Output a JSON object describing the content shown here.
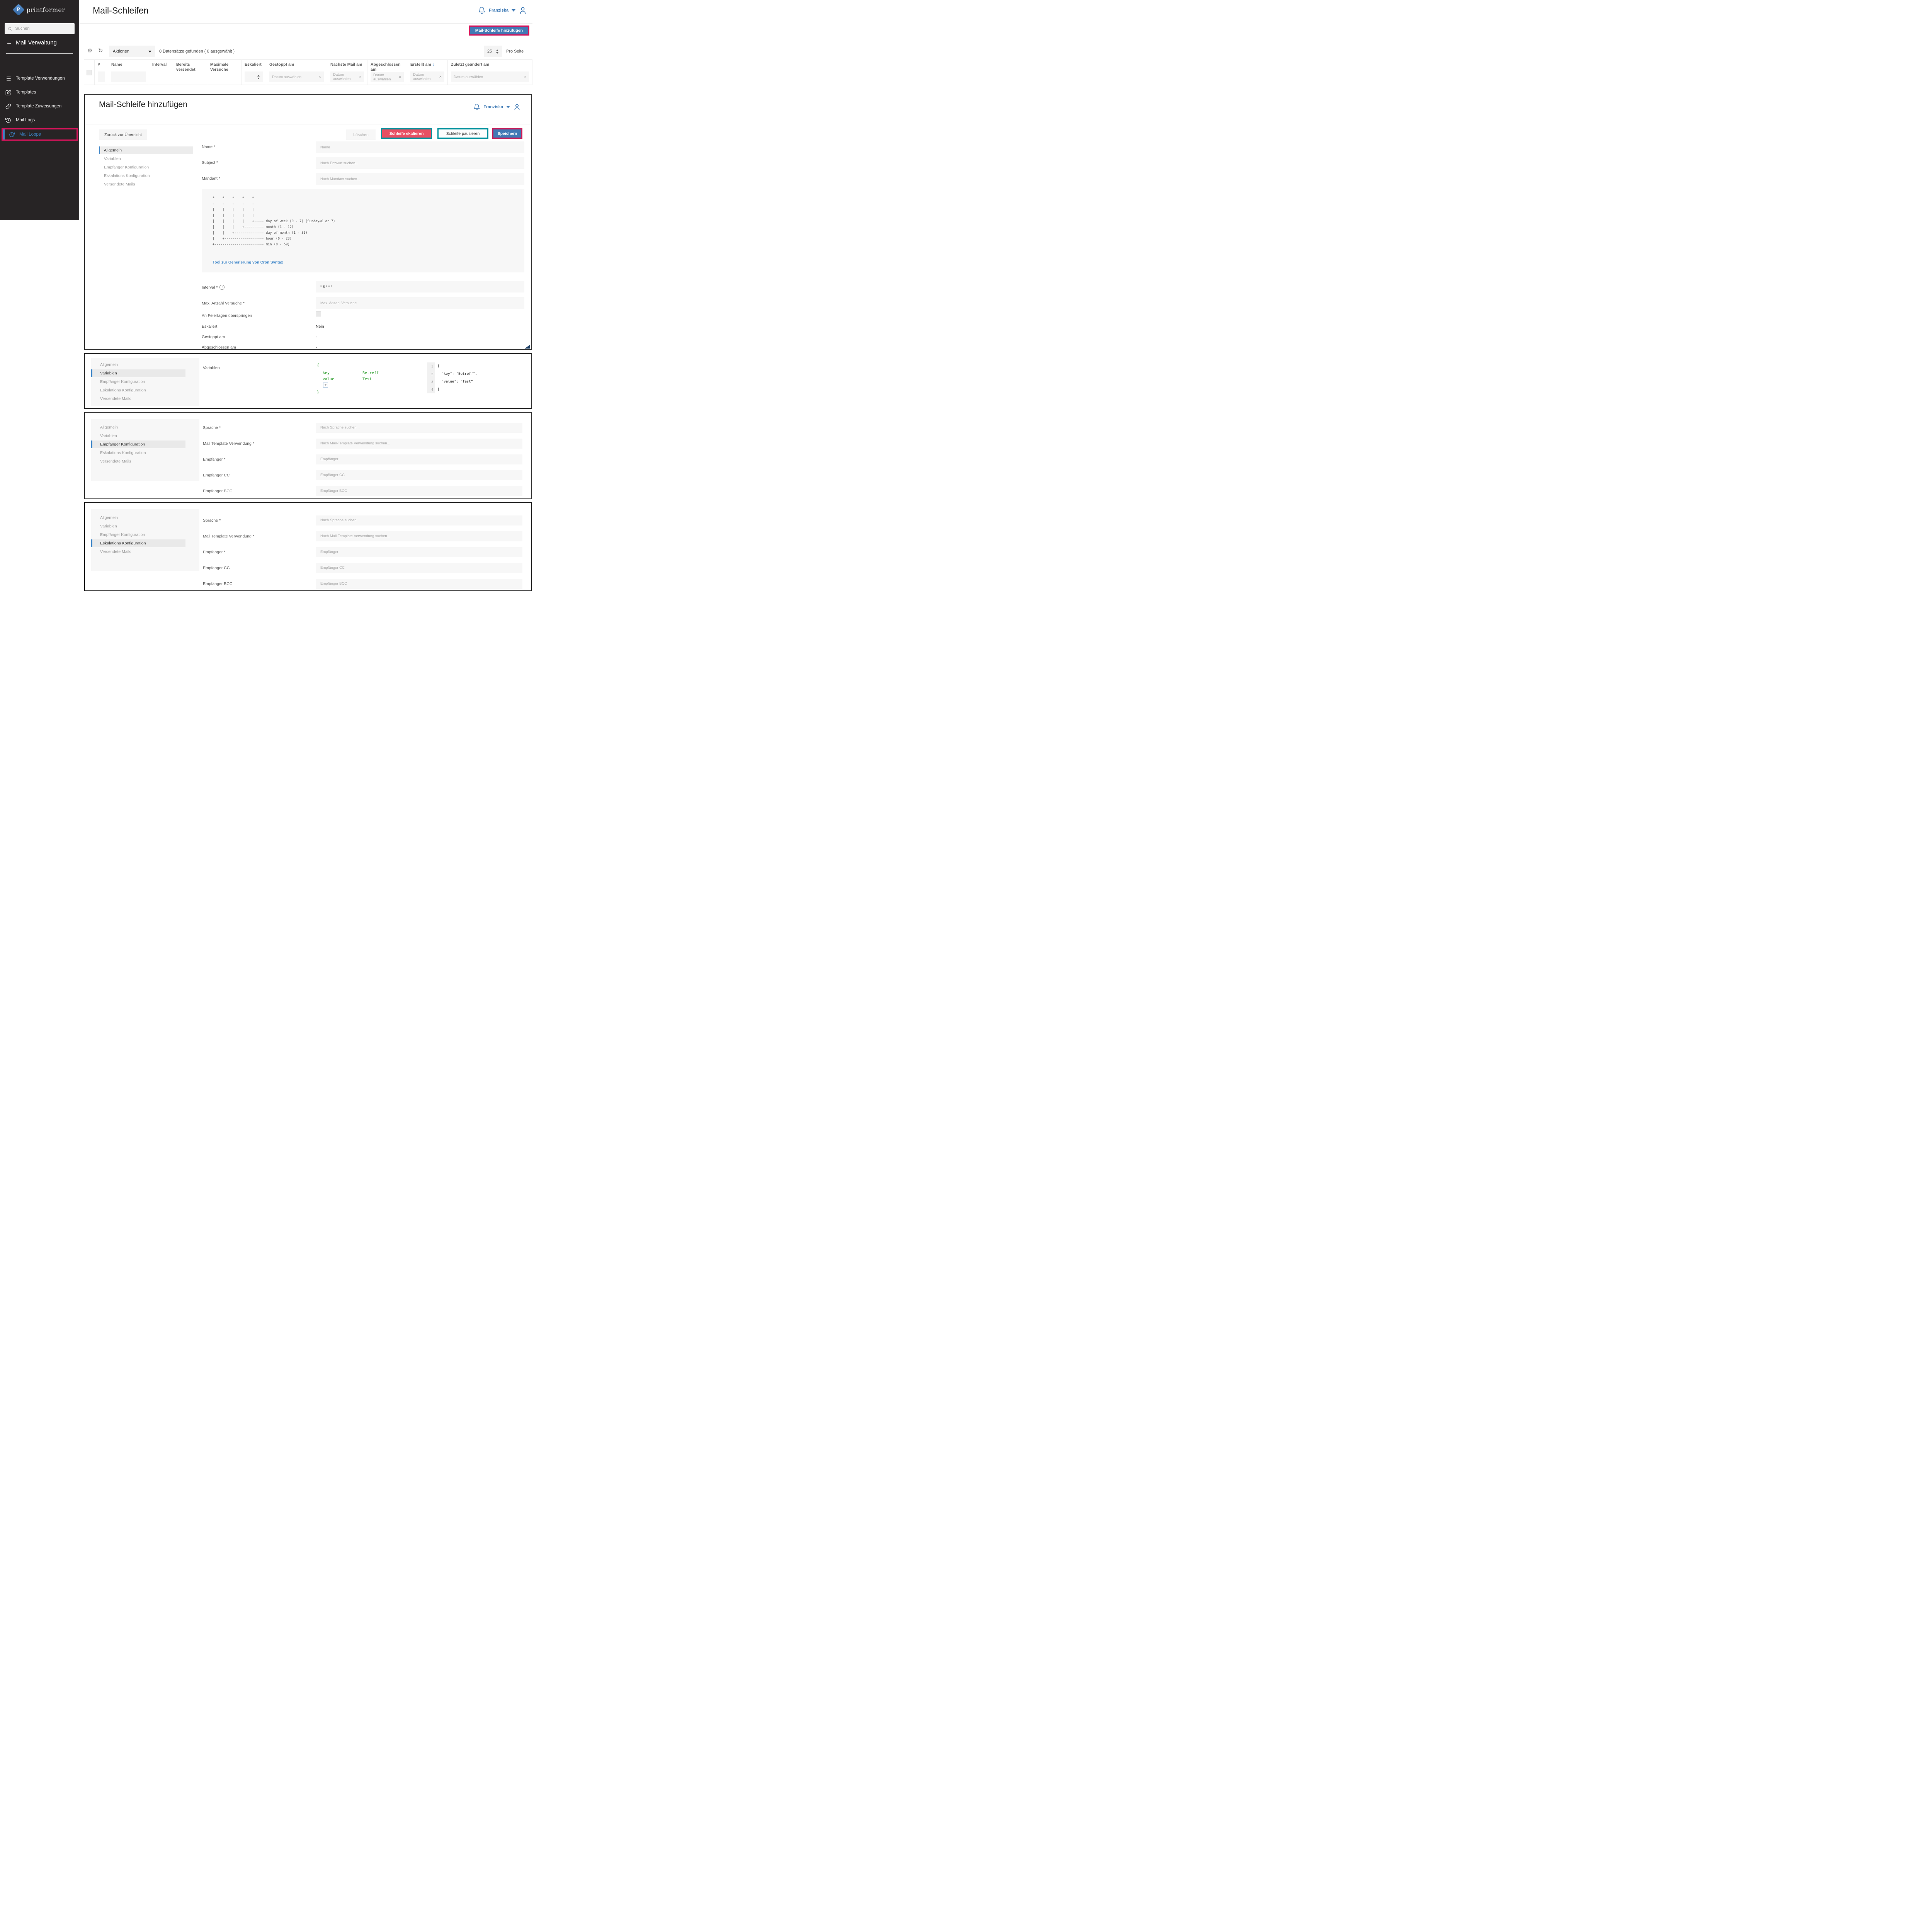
{
  "sidebar": {
    "brand": "printformer",
    "logo_letter": "P",
    "search_placeholder": "Suchen",
    "back_arrow": "←",
    "section_title": "Mail Verwaltung",
    "items": [
      {
        "label": "Template Verwendungen",
        "icon": "list-icon",
        "active": false
      },
      {
        "label": "Templates",
        "icon": "edit-icon",
        "active": false
      },
      {
        "label": "Template Zuweisungen",
        "icon": "link-icon",
        "active": false
      },
      {
        "label": "Mail Logs",
        "icon": "history-icon",
        "active": false
      },
      {
        "label": "Mail Loops",
        "icon": "loop-icon",
        "active": true
      }
    ]
  },
  "header": {
    "title": "Mail-Schleifen",
    "user_name": "Franziska",
    "add_button": "Mail-Schleife hinzufügen"
  },
  "toolbar": {
    "actions_label": "Aktionen",
    "results_text": "0 Datensätze gefunden ( 0 ausgewählt )",
    "per_page_value": "25",
    "per_page_label": "Pro Seite"
  },
  "table": {
    "date_placeholder": "Datum auswählen",
    "clear_glyph": "×",
    "sort_glyph": "↓",
    "columns": [
      {
        "label": "#",
        "filter": "box"
      },
      {
        "label": "Name",
        "filter": "box"
      },
      {
        "label": "Interval",
        "filter": "none"
      },
      {
        "label": "Bereits versendet",
        "filter": "none"
      },
      {
        "label": "Maximale Versuche",
        "filter": "none"
      },
      {
        "label": "Eskaliert",
        "filter": "select",
        "value": "-"
      },
      {
        "label": "Gestoppt am",
        "filter": "date"
      },
      {
        "label": "Nächste Mail am",
        "filter": "date"
      },
      {
        "label": "Abgeschlossen am",
        "filter": "date"
      },
      {
        "label": "Erstellt am",
        "filter": "date",
        "sorted": true
      },
      {
        "label": "Zuletzt geändert am",
        "filter": "date"
      }
    ]
  },
  "tabs": [
    "Allgemein",
    "Variablen",
    "Empfänger Konfiguration",
    "Eskalations Konfiguration",
    "Versendete Mails"
  ],
  "panel_add": {
    "title": "Mail-Schleife hinzufügen",
    "user_name": "Franziska",
    "back_button": "Zurück zur Übersicht",
    "delete_button": "Löschen",
    "escalate_button": "Schleife ekalieren",
    "pause_button": "Schleife pausieren",
    "save_button": "Speichern",
    "name_label": "Name *",
    "name_placeholder": "Name",
    "subject_label": "Subject *",
    "subject_placeholder": "Nach Entwurf suchen...",
    "mandant_label": "Mandant *",
    "mandant_placeholder": "Nach Mandant suchen...",
    "cron_lines": [
      "*    *    *    *    *",
      "-    -    -    -    -",
      "|    |    |    |    |",
      "|    |    |    |    |",
      "|    |    |    |    +----- day of week (0 - 7) (Sunday=0 or 7)",
      "|    |    |    +---------- month (1 - 12)",
      "|    |    +--------------- day of month (1 - 31)",
      "|    +-------------------- hour (0 - 23)",
      "+------------------------- min (0 - 59)"
    ],
    "cron_link": "Tool zur Generierung von Cron Syntax",
    "interval_label": "Interval *",
    "interval_value": "* 8 * * *",
    "max_attempts_label": "Max. Anzahl Versuche *",
    "max_attempts_placeholder": "Max. Anzahl Versuche",
    "skip_holidays_label": "An Feiertagen überspringen",
    "escalated_label": "Eskaliert",
    "escalated_value": "Nein",
    "stopped_label": "Gestoppt am",
    "stopped_value": "-",
    "completed_label": "Abgeschlossen am",
    "completed_value": "-"
  },
  "panel_variables": {
    "field_label": "Variablen",
    "tree": {
      "open_brace": "{",
      "close_brace": "}",
      "key_name": "key",
      "key_value": "Betreff",
      "value_name": "value",
      "value_value": "Test",
      "add_button": "+"
    },
    "code": {
      "line_numbers": [
        "1",
        "2",
        "3",
        "4"
      ],
      "lines": [
        "{",
        "  \"key\": \"Betreff\",",
        "  \"value\": \"Test\"",
        "}"
      ]
    }
  },
  "panel_recipient": {
    "rows": [
      {
        "label": "Sprache *",
        "placeholder": "Nach Sprache suchen..."
      },
      {
        "label": "Mail Template Verwendung *",
        "placeholder": "Nach Mail-Template Verwendung suchen..."
      },
      {
        "label": "Empfänger *",
        "placeholder": "Empfänger"
      },
      {
        "label": "Empfänger CC",
        "placeholder": "Empfänger CC"
      },
      {
        "label": "Empfänger BCC",
        "placeholder": "Empfänger BCC"
      }
    ]
  },
  "panel_escalation": {
    "rows": [
      {
        "label": "Sprache *",
        "placeholder": "Nach Sprache suchen..."
      },
      {
        "label": "Mail Template Verwendung *",
        "placeholder": "Nach Mail-Template Verwendung suchen..."
      },
      {
        "label": "Empfänger *",
        "placeholder": "Empfänger"
      },
      {
        "label": "Empfänger CC",
        "placeholder": "Empfänger CC"
      },
      {
        "label": "Empfänger BCC",
        "placeholder": "Empfänger BCC"
      }
    ]
  },
  "colors": {
    "accent_blue": "#4179b5",
    "highlight_pink": "#d4145a",
    "teal_outline": "#00939e",
    "button_red": "#e84f63",
    "link_blue": "#3c85c8",
    "json_green": "#2f9e2f",
    "sidebar_bg": "#272425"
  }
}
